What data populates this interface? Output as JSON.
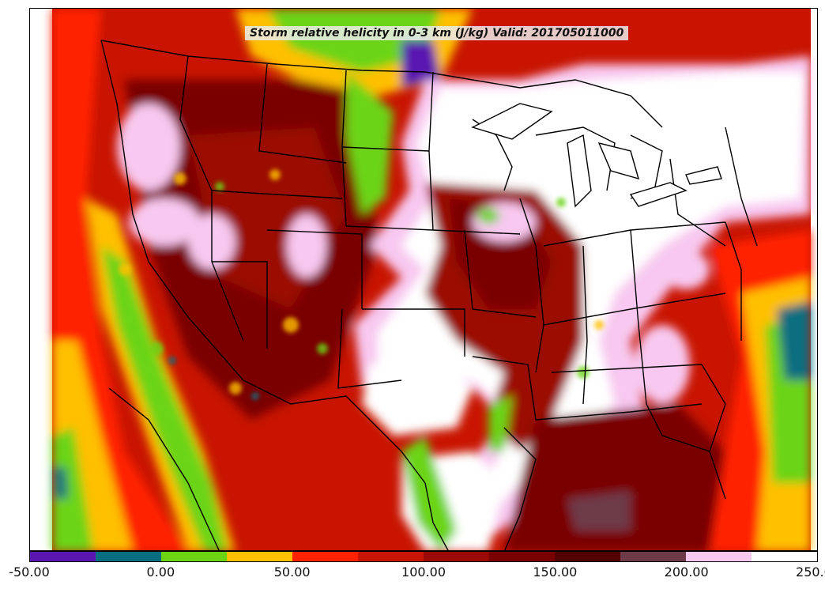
{
  "title": "Storm relative helicity in 0-3 km (J/kg) Valid: 201705011000",
  "colorbar": {
    "colors": [
      "#5a16b0",
      "#086e80",
      "#6cd412",
      "#ffc000",
      "#ff2200",
      "#c81400",
      "#9a0a00",
      "#7a0000",
      "#520000",
      "#6e3a48",
      "#f8c8f0",
      "#ffffff"
    ],
    "ticks": [
      "-50.00",
      "0.00",
      "50.00",
      "100.00",
      "150.00",
      "200.00",
      "250.00"
    ]
  },
  "map": {
    "background_color": "#ff2200",
    "region": "Continental United States",
    "state_border_color": "#000000"
  }
}
